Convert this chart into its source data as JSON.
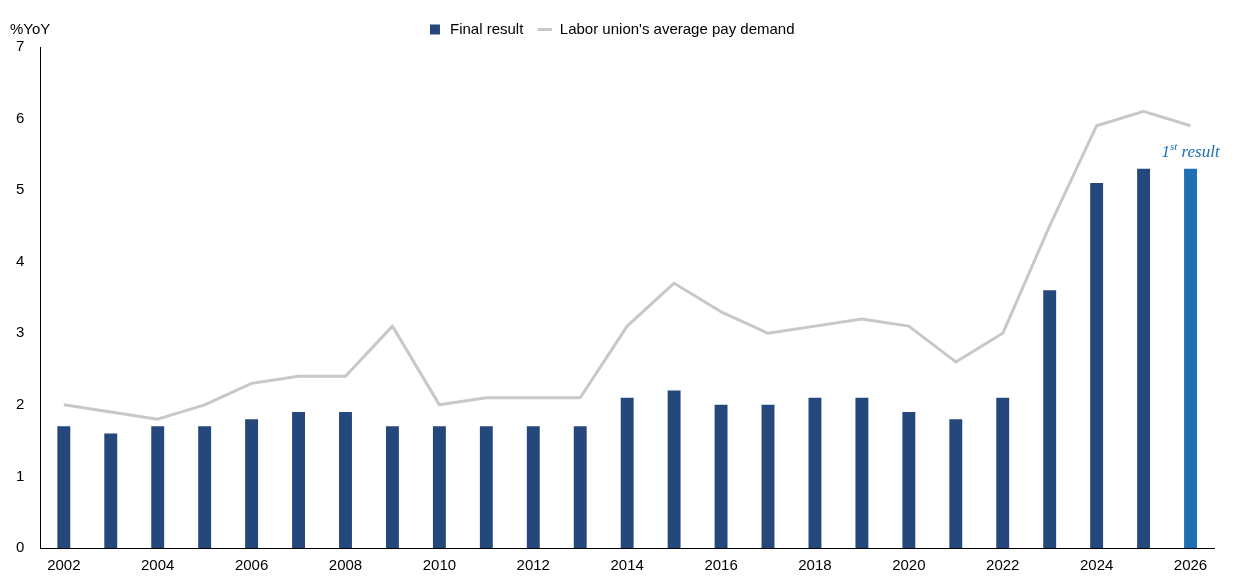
{
  "chart_data": {
    "type": "bar",
    "ylabel": "%YoY",
    "categories": [
      "2002",
      null,
      "2004",
      null,
      "2006",
      null,
      "2008",
      null,
      "2010",
      null,
      "2012",
      null,
      "2014",
      null,
      "2016",
      null,
      "2018",
      null,
      "2020",
      null,
      "2022",
      null,
      "2024",
      null,
      "2026"
    ],
    "series": [
      {
        "name": "Final result",
        "color": "#24477c",
        "colors": [
          "#24477c",
          "#24477c",
          "#24477c",
          "#24477c",
          "#24477c",
          "#24477c",
          "#24477c",
          "#24477c",
          "#24477c",
          "#24477c",
          "#24477c",
          "#24477c",
          "#24477c",
          "#24477c",
          "#24477c",
          "#24477c",
          "#24477c",
          "#24477c",
          "#24477c",
          "#24477c",
          "#24477c",
          "#24477c",
          "#24477c",
          "#24477c",
          "#1f6fb5"
        ],
        "values": [
          1.7,
          1.6,
          1.7,
          1.7,
          1.8,
          1.9,
          1.9,
          1.7,
          1.7,
          1.7,
          1.7,
          1.7,
          2.1,
          2.2,
          2.0,
          2.0,
          2.1,
          2.1,
          1.9,
          1.8,
          2.1,
          3.6,
          5.1,
          5.3,
          5.3
        ]
      },
      {
        "name": "Labor union's average pay demand",
        "type": "line",
        "color": "#c8c8c8",
        "values": [
          2.0,
          1.9,
          1.8,
          2.0,
          2.3,
          2.4,
          2.4,
          3.1,
          2.0,
          2.1,
          2.1,
          2.1,
          3.1,
          3.7,
          3.3,
          3.0,
          3.1,
          3.2,
          3.1,
          2.6,
          3.0,
          4.5,
          5.9,
          6.1,
          5.9
        ]
      }
    ],
    "ylim": [
      0,
      7
    ],
    "yticks": [
      0,
      1,
      2,
      3,
      4,
      5,
      6,
      7
    ],
    "grid": false,
    "legend": "top",
    "marker": "none",
    "annotations": [
      "1$^{st}$ result"
    ]
  }
}
